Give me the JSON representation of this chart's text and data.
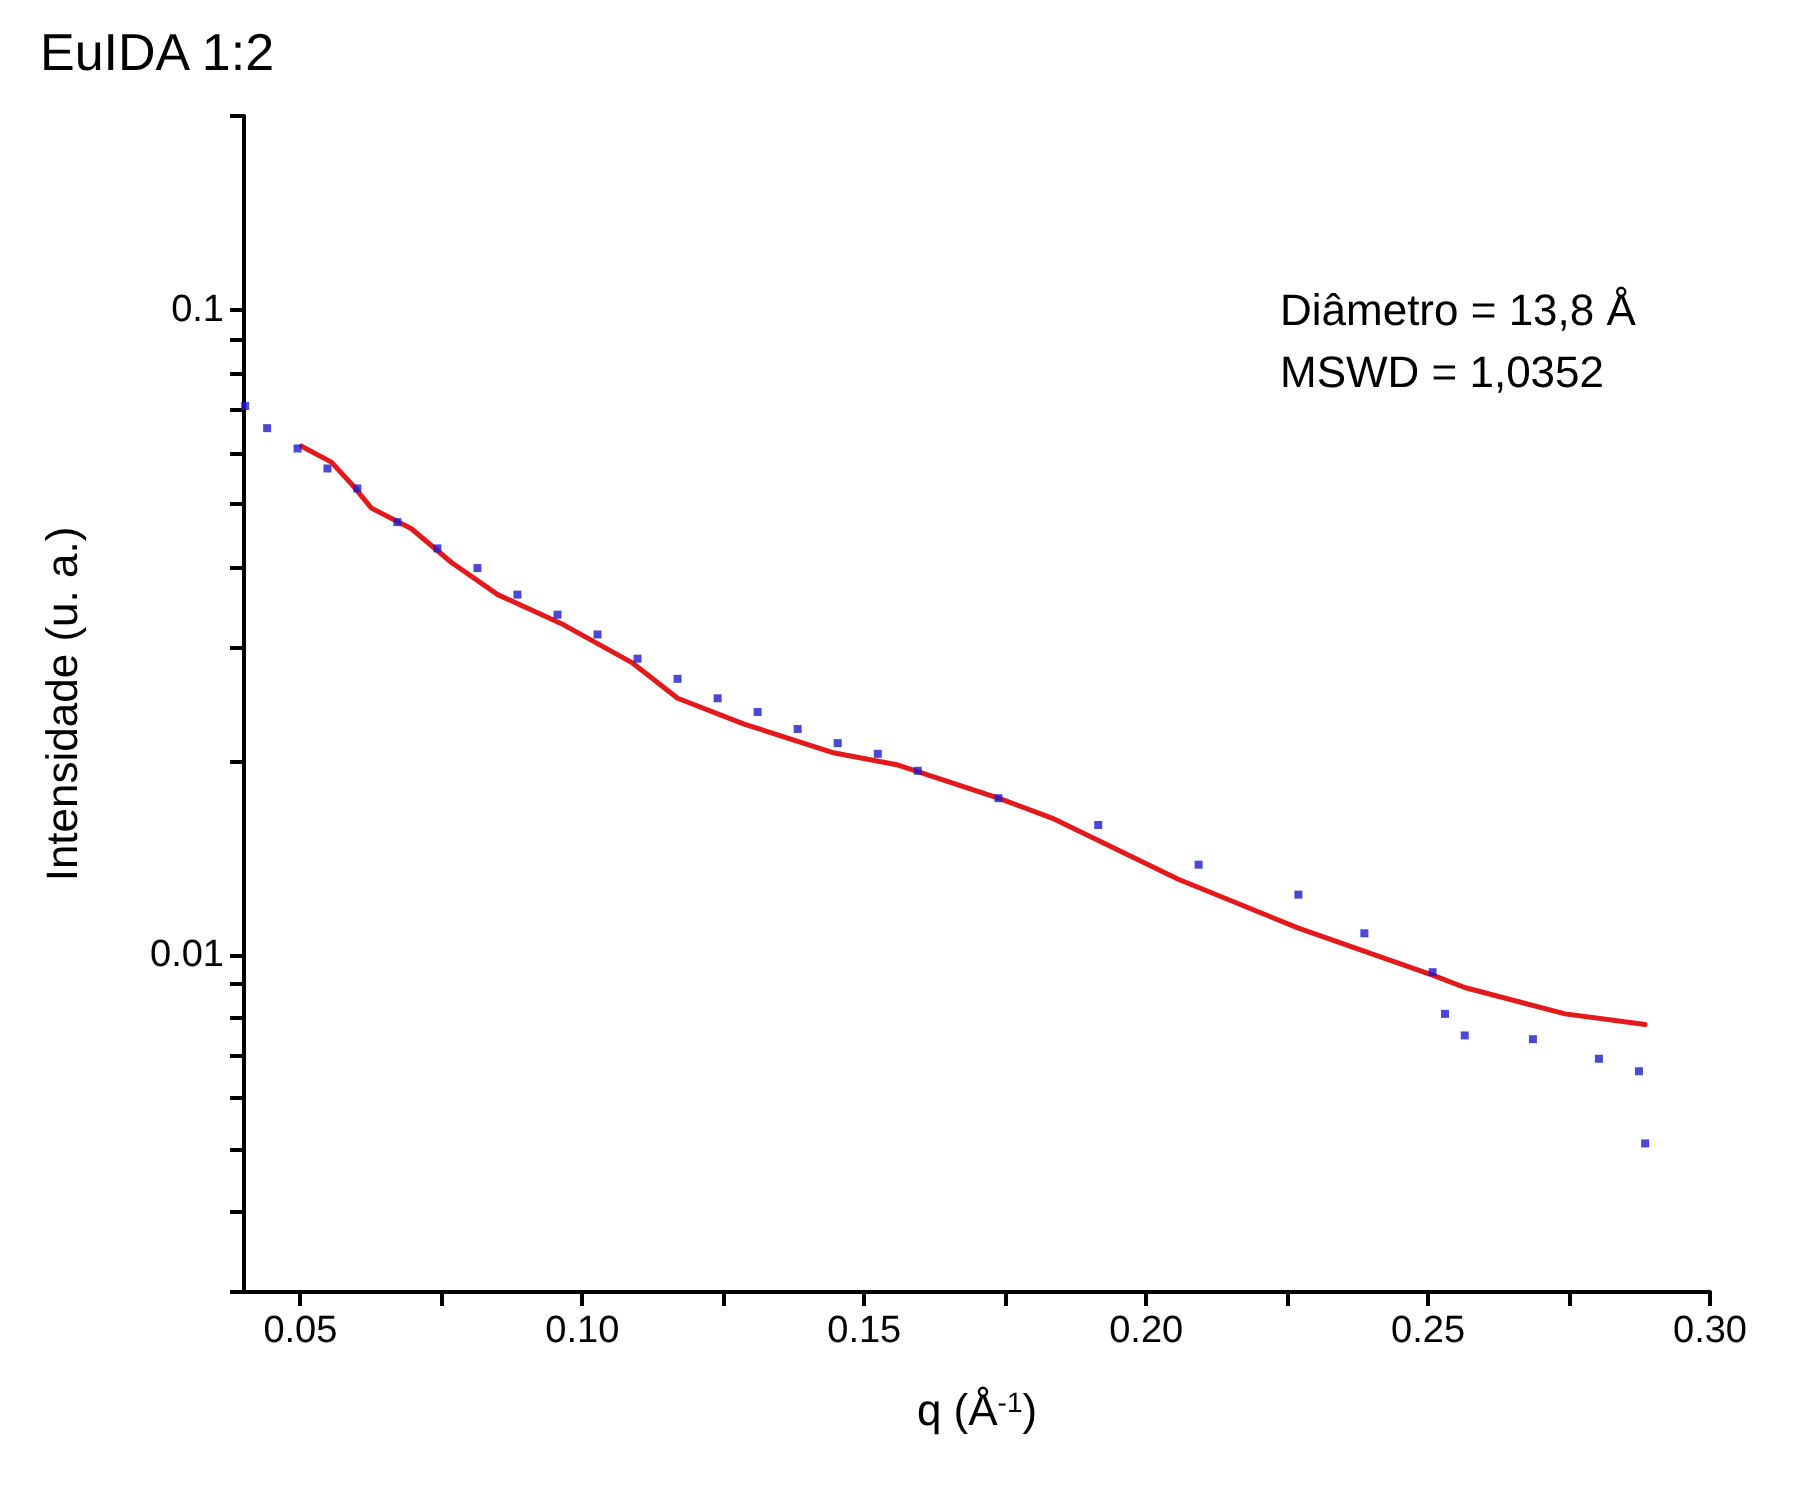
{
  "chart_data": {
    "type": "scatter",
    "title": "EuIDA 1:2",
    "xlabel": "q (Å$^{-1}$)",
    "ylabel": "Intensidade (u. a.)",
    "annotations": [
      "Diâmetro = 13,8 Å",
      "MSWD = 1,0352"
    ],
    "log": "y",
    "grid": false,
    "marker": "square",
    "xlim": [
      0.04,
      0.3
    ],
    "xticks": [
      {
        "value": 0.05,
        "label": "0.05"
      },
      {
        "value": 0.075,
        "label": null
      },
      {
        "value": 0.1,
        "label": "0.10"
      },
      {
        "value": 0.125,
        "label": null
      },
      {
        "value": 0.15,
        "label": "0.15"
      },
      {
        "value": 0.175,
        "label": null
      },
      {
        "value": 0.2,
        "label": "0.20"
      },
      {
        "value": 0.225,
        "label": null
      },
      {
        "value": 0.25,
        "label": "0.25"
      },
      {
        "value": 0.275,
        "label": null
      },
      {
        "value": 0.3,
        "label": "0.30"
      }
    ],
    "ylim": [
      0.003,
      0.2
    ],
    "yticks": [
      {
        "value": 0.003,
        "label": null
      },
      {
        "value": 0.004,
        "label": null
      },
      {
        "value": 0.005,
        "label": null
      },
      {
        "value": 0.006,
        "label": null
      },
      {
        "value": 0.007,
        "label": null
      },
      {
        "value": 0.008,
        "label": null
      },
      {
        "value": 0.009,
        "label": null
      },
      0.01,
      {
        "value": 0.02,
        "label": null
      },
      {
        "value": 0.03,
        "label": null
      },
      {
        "value": 0.04,
        "label": null
      },
      {
        "value": 0.05,
        "label": null
      },
      {
        "value": 0.06,
        "label": null
      },
      {
        "value": 0.07,
        "label": null
      },
      {
        "value": 0.08,
        "label": null
      },
      {
        "value": 0.09,
        "label": null
      },
      0.1,
      {
        "value": 0.2,
        "label": null
      }
    ],
    "series": [
      {
        "color": "#1c1ccc",
        "x": [
          0.0402,
          0.0441,
          0.0495,
          0.0548,
          0.0601,
          0.0672,
          0.0743,
          0.0814,
          0.0885,
          0.0956,
          0.1027,
          0.1098,
          0.1169,
          0.124,
          0.1311,
          0.1382,
          0.1453,
          0.1524,
          0.1595,
          0.1738,
          0.1915,
          0.2093,
          0.227,
          0.2387,
          0.2508,
          0.253,
          0.2565,
          0.2686,
          0.2803,
          0.2874,
          0.2885
        ],
        "values": [
          0.071,
          0.0656,
          0.061,
          0.0568,
          0.0529,
          0.0469,
          0.0427,
          0.0398,
          0.0362,
          0.0337,
          0.0314,
          0.0288,
          0.0268,
          0.025,
          0.0238,
          0.0224,
          0.0213,
          0.0205,
          0.0193,
          0.0175,
          0.0159,
          0.0138,
          0.0124,
          0.0108,
          0.0094,
          0.0081,
          0.0075,
          0.0074,
          0.0069,
          0.0066,
          0.0051
        ]
      },
      {
        "type": "line",
        "color": "#e3191c",
        "line_style": "solid",
        "marker": "none",
        "x": [
          0.0502,
          0.0555,
          0.0591,
          0.0626,
          0.0697,
          0.0768,
          0.085,
          0.0967,
          0.1088,
          0.1169,
          0.1287,
          0.1443,
          0.156,
          0.1738,
          0.1833,
          0.2057,
          0.227,
          0.2508,
          0.2565,
          0.2743,
          0.2885
        ],
        "values": [
          0.0615,
          0.0581,
          0.0537,
          0.0493,
          0.0458,
          0.0406,
          0.0362,
          0.0325,
          0.0284,
          0.025,
          0.0228,
          0.0206,
          0.0197,
          0.0175,
          0.0163,
          0.0131,
          0.011,
          0.0093,
          0.0089,
          0.0081,
          0.0078
        ]
      }
    ]
  }
}
